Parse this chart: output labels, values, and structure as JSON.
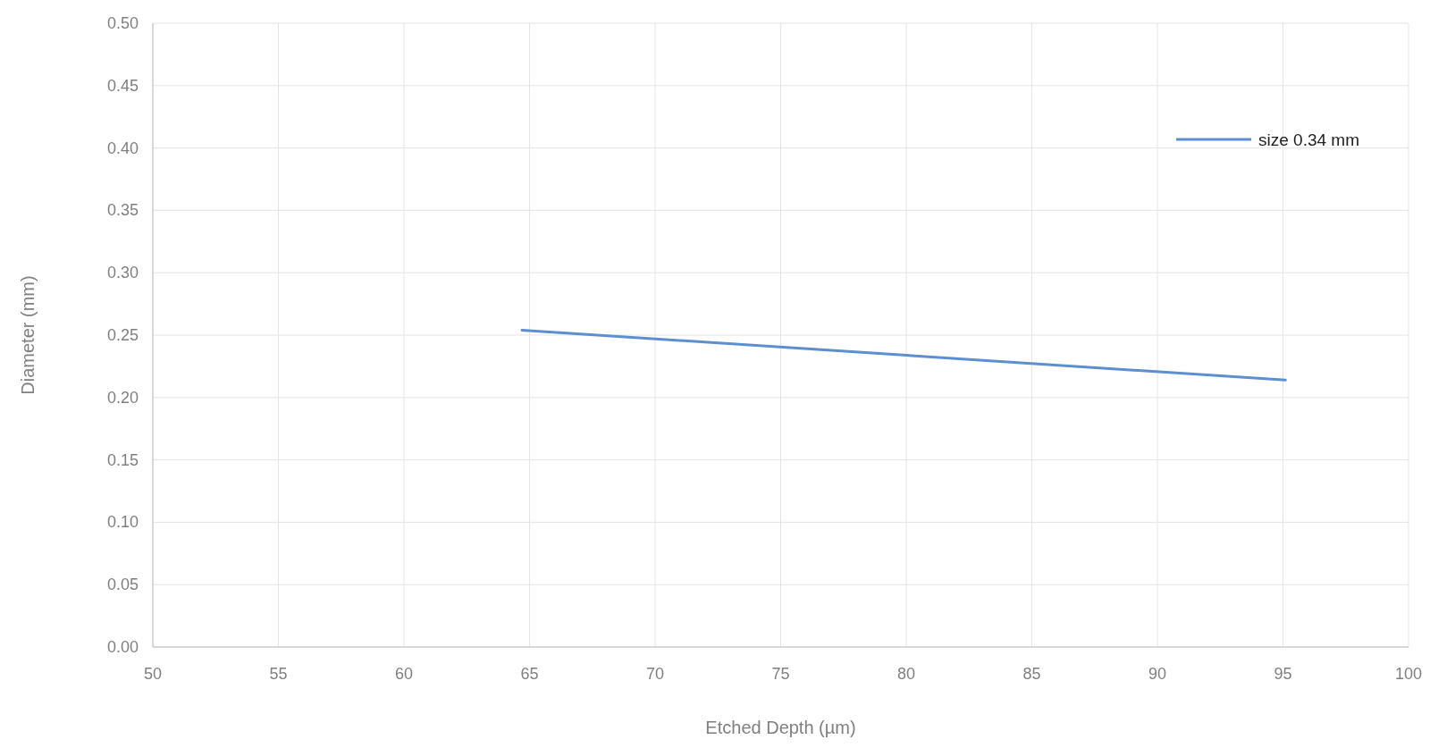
{
  "chart_data": {
    "type": "line",
    "xlabel": "Etched Depth (µm)",
    "ylabel": "Diameter (mm)",
    "x": [
      64.7,
      95.1
    ],
    "series": [
      {
        "name": "size 0.34 mm",
        "color": "#5b8fd0",
        "values": [
          0.254,
          0.214
        ]
      }
    ],
    "xlim": [
      50,
      100
    ],
    "xticks": [
      50,
      55,
      60,
      65,
      70,
      75,
      80,
      85,
      90,
      95,
      100
    ],
    "ylim": [
      0,
      0.5
    ],
    "yticks": [
      {
        "value": 0,
        "label": "0.00"
      },
      {
        "value": 0.05,
        "label": "0.05"
      },
      {
        "value": 0.1,
        "label": "0.10"
      },
      {
        "value": 0.15,
        "label": "0.15"
      },
      {
        "value": 0.2,
        "label": "0.20"
      },
      {
        "value": 0.25,
        "label": "0.25"
      },
      {
        "value": 0.3,
        "label": "0.30"
      },
      {
        "value": 0.35,
        "label": "0.35"
      },
      {
        "value": 0.4,
        "label": "0.40"
      },
      {
        "value": 0.45,
        "label": "0.45"
      },
      {
        "value": 0.5,
        "label": "0.50"
      }
    ],
    "grid": true,
    "legend": "top right",
    "marker": "none",
    "line_style": "solid"
  }
}
